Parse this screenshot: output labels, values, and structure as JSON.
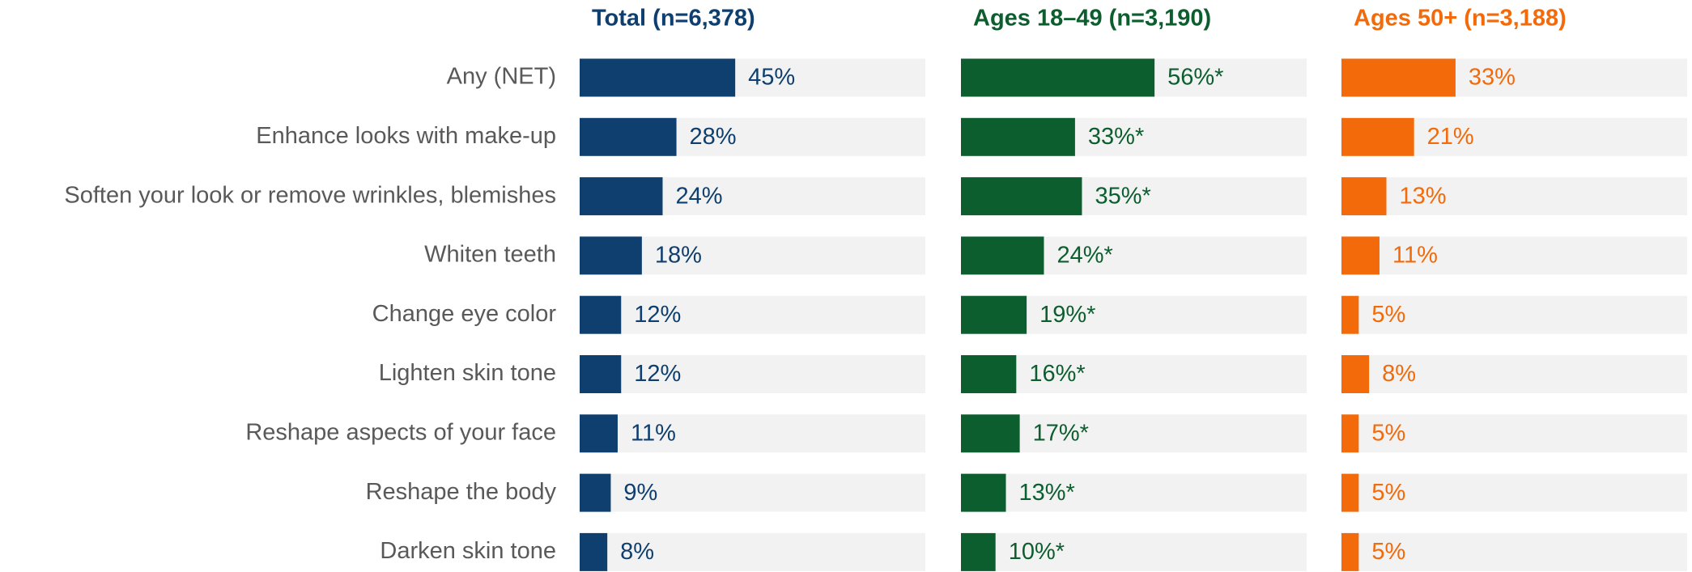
{
  "chart_data": {
    "type": "bar",
    "orientation": "horizontal",
    "categories": [
      "Any (NET)",
      "Enhance looks with make-up",
      "Soften your look or remove wrinkles, blemishes",
      "Whiten teeth",
      "Change eye color",
      "Lighten skin tone",
      "Reshape aspects of your face",
      "Reshape the body",
      "Darken skin tone"
    ],
    "xlim": [
      0,
      100
    ],
    "track_color": "#f2f2f2",
    "series": [
      {
        "name": "Total (n=6,378)",
        "color": "#0f3f6e",
        "values": [
          45,
          28,
          24,
          18,
          12,
          12,
          11,
          9,
          8
        ],
        "value_labels": [
          "45%",
          "28%",
          "24%",
          "18%",
          "12%",
          "12%",
          "11%",
          "9%",
          "8%"
        ]
      },
      {
        "name": "Ages 18–49 (n=3,190)",
        "color": "#0d5e2f",
        "values": [
          56,
          33,
          35,
          24,
          19,
          16,
          17,
          13,
          10
        ],
        "value_labels": [
          "56%*",
          "33%*",
          "35%*",
          "24%*",
          "19%*",
          "16%*",
          "17%*",
          "13%*",
          "10%*"
        ]
      },
      {
        "name": "Ages 50+ (n=3,188)",
        "color": "#f26a0a",
        "values": [
          33,
          21,
          13,
          11,
          5,
          8,
          5,
          5,
          5
        ],
        "value_labels": [
          "33%",
          "21%",
          "13%",
          "11%",
          "5%",
          "8%",
          "5%",
          "5%",
          "5%"
        ]
      }
    ]
  }
}
